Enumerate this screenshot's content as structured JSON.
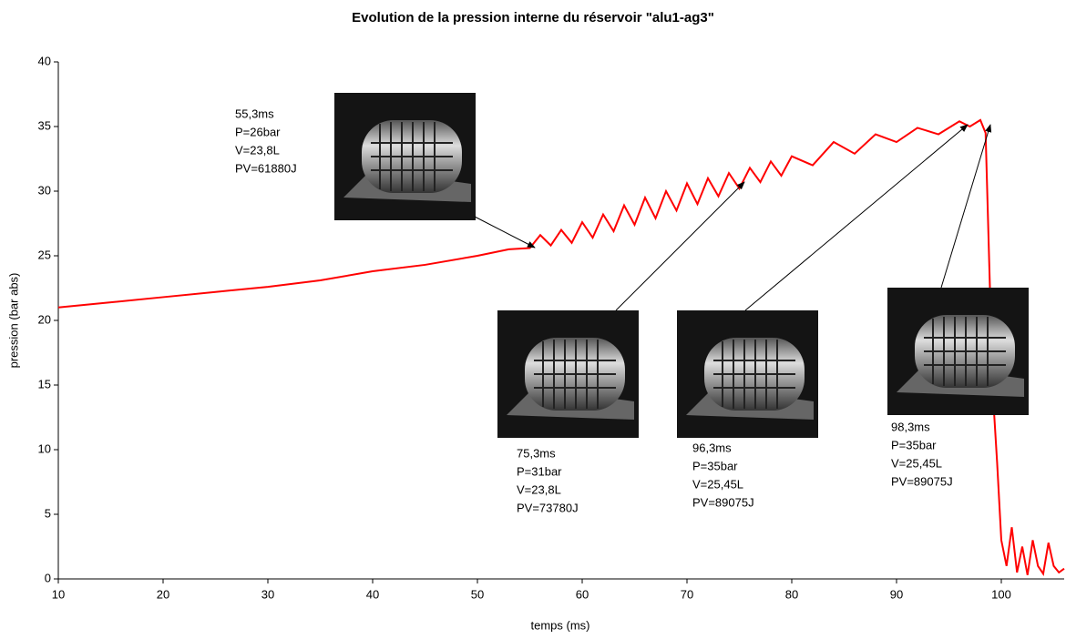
{
  "chart_data": {
    "type": "line",
    "title": "Evolution de la pression interne du réservoir \"alu1-ag3\"",
    "x_label": "temps (ms)",
    "y_label": "pression (bar abs)",
    "x": [
      10,
      15,
      20,
      25,
      30,
      35,
      40,
      45,
      50,
      53,
      55,
      56,
      57,
      58,
      59,
      60,
      61,
      62,
      63,
      64,
      65,
      66,
      67,
      68,
      69,
      70,
      71,
      72,
      73,
      74,
      75,
      76,
      77,
      78,
      79,
      80,
      82,
      84,
      86,
      88,
      90,
      92,
      94,
      96,
      97,
      98,
      98.5,
      99,
      99.3,
      99.6,
      100,
      100.5,
      101,
      101.5,
      102,
      102.5,
      103,
      103.5,
      104,
      104.5,
      105,
      105.5,
      106
    ],
    "values": [
      21,
      21.4,
      21.8,
      22.2,
      22.6,
      23.1,
      23.8,
      24.3,
      25.0,
      25.5,
      25.6,
      26.6,
      25.8,
      27.0,
      26.0,
      27.6,
      26.4,
      28.2,
      26.9,
      28.9,
      27.4,
      29.5,
      27.9,
      30.0,
      28.5,
      30.6,
      29.0,
      31.0,
      29.6,
      31.4,
      30.2,
      31.8,
      30.7,
      32.3,
      31.2,
      32.7,
      32.0,
      33.8,
      32.9,
      34.4,
      33.8,
      34.9,
      34.4,
      35.4,
      35.0,
      35.5,
      34.5,
      20,
      13,
      9,
      3,
      1,
      4,
      0.5,
      2.5,
      0.3,
      3,
      1,
      0.4,
      2.8,
      1,
      0.5,
      0.8
    ],
    "color": "#ff0000",
    "xlim": [
      10,
      106
    ],
    "xticks": [
      10,
      20,
      30,
      40,
      50,
      60,
      70,
      80,
      90,
      100
    ],
    "ylim": [
      0,
      40
    ],
    "yticks": [
      0,
      5,
      10,
      15,
      20,
      25,
      30,
      35,
      40
    ],
    "grid": false,
    "annotations": [
      {
        "text": [
          "55,3ms",
          "P=26bar",
          "V=23,8L",
          "PV=61880J"
        ]
      },
      {
        "text": [
          "75,3ms",
          "P=31bar",
          "V=23,8L",
          "PV=73780J"
        ]
      },
      {
        "text": [
          "96,3ms",
          "P=35bar",
          "V=25,45L",
          "PV=89075J"
        ]
      },
      {
        "text": [
          "98,3ms",
          "P=35bar",
          "V=25,45L",
          "PV=89075J"
        ]
      }
    ]
  }
}
